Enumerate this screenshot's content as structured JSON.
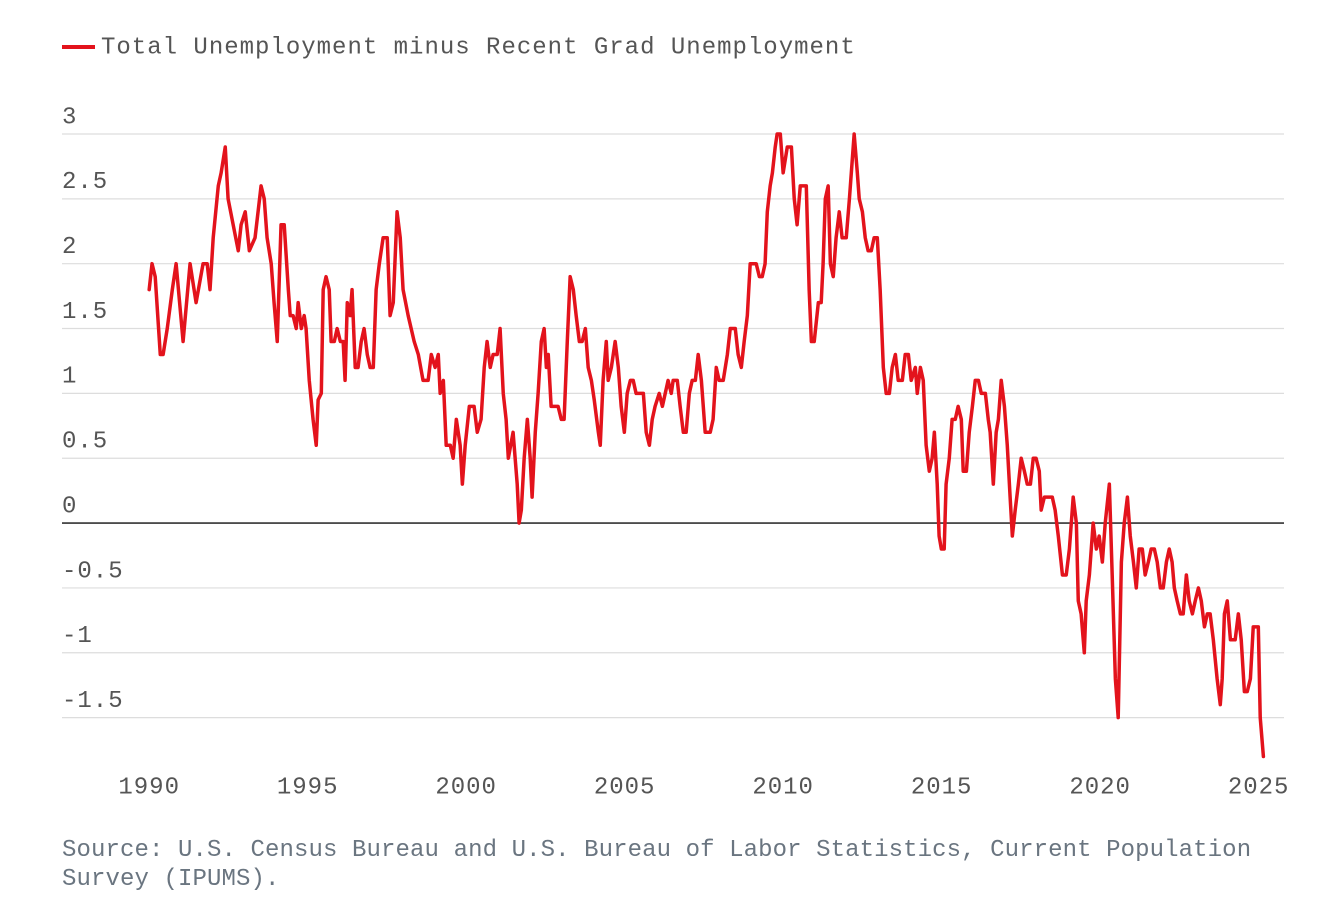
{
  "chart_data": {
    "type": "line",
    "source": "Source: U.S. Census Bureau and U.S. Bureau of Labor Statistics, Current Population Survey (IPUMS).",
    "x": [
      1990.0,
      1990.09,
      1990.19,
      1990.35,
      1990.44,
      1990.57,
      1990.73,
      1990.85,
      1991.07,
      1991.29,
      1991.48,
      1991.7,
      1991.83,
      1991.92,
      1992.02,
      1992.18,
      1992.27,
      1992.4,
      1992.49,
      1992.65,
      1992.81,
      1992.9,
      1993.03,
      1993.16,
      1993.34,
      1993.53,
      1993.63,
      1993.72,
      1993.85,
      1993.94,
      1994.04,
      1994.16,
      1994.26,
      1994.39,
      1994.45,
      1994.54,
      1994.64,
      1994.7,
      1994.8,
      1994.89,
      1994.95,
      1995.05,
      1995.17,
      1995.27,
      1995.33,
      1995.43,
      1995.49,
      1995.58,
      1995.68,
      1995.74,
      1995.84,
      1995.93,
      1996.03,
      1996.12,
      1996.18,
      1996.25,
      1996.34,
      1996.4,
      1996.5,
      1996.59,
      1996.69,
      1996.78,
      1996.88,
      1996.97,
      1997.07,
      1997.16,
      1997.26,
      1997.38,
      1997.51,
      1997.6,
      1997.7,
      1997.82,
      1997.92,
      1998.01,
      1998.17,
      1998.36,
      1998.49,
      1998.64,
      1998.8,
      1998.9,
      1999.02,
      1999.12,
      1999.18,
      1999.28,
      1999.37,
      1999.5,
      1999.59,
      1999.69,
      1999.81,
      1999.88,
      1999.97,
      2000.1,
      2000.25,
      2000.35,
      2000.47,
      2000.57,
      2000.66,
      2000.76,
      2000.85,
      2000.98,
      2001.07,
      2001.17,
      2001.26,
      2001.33,
      2001.48,
      2001.61,
      2001.67,
      2001.74,
      2001.83,
      2001.93,
      2002.02,
      2002.08,
      2002.18,
      2002.27,
      2002.37,
      2002.46,
      2002.53,
      2002.59,
      2002.68,
      2002.9,
      2003.0,
      2003.09,
      2003.19,
      2003.28,
      2003.38,
      2003.47,
      2003.57,
      2003.66,
      2003.76,
      2003.85,
      2003.95,
      2004.04,
      2004.17,
      2004.23,
      2004.32,
      2004.42,
      2004.48,
      2004.58,
      2004.7,
      2004.8,
      2004.89,
      2004.99,
      2005.08,
      2005.18,
      2005.27,
      2005.36,
      2005.59,
      2005.68,
      2005.78,
      2005.87,
      2005.96,
      2006.09,
      2006.19,
      2006.28,
      2006.37,
      2006.47,
      2006.53,
      2006.66,
      2006.75,
      2006.85,
      2006.94,
      2007.04,
      2007.13,
      2007.23,
      2007.32,
      2007.42,
      2007.54,
      2007.7,
      2007.79,
      2007.89,
      2007.98,
      2008.11,
      2008.24,
      2008.33,
      2008.49,
      2008.58,
      2008.68,
      2008.77,
      2008.87,
      2008.96,
      2009.15,
      2009.25,
      2009.34,
      2009.43,
      2009.5,
      2009.59,
      2009.66,
      2009.75,
      2009.81,
      2009.91,
      2010.0,
      2010.13,
      2010.26,
      2010.35,
      2010.44,
      2010.54,
      2010.73,
      2010.82,
      2010.89,
      2010.98,
      2011.11,
      2011.2,
      2011.26,
      2011.33,
      2011.42,
      2011.49,
      2011.58,
      2011.67,
      2011.77,
      2011.86,
      2011.99,
      2012.09,
      2012.18,
      2012.24,
      2012.34,
      2012.4,
      2012.5,
      2012.59,
      2012.68,
      2012.78,
      2012.87,
      2012.97,
      2013.06,
      2013.16,
      2013.25,
      2013.35,
      2013.44,
      2013.54,
      2013.63,
      2013.76,
      2013.85,
      2013.95,
      2014.04,
      2014.17,
      2014.23,
      2014.33,
      2014.42,
      2014.51,
      2014.61,
      2014.7,
      2014.77,
      2014.86,
      2014.92,
      2014.99,
      2015.08,
      2015.14,
      2015.24,
      2015.33,
      2015.43,
      2015.52,
      2015.62,
      2015.68,
      2015.78,
      2015.87,
      2015.97,
      2016.06,
      2016.16,
      2016.25,
      2016.38,
      2016.47,
      2016.53,
      2016.63,
      2016.72,
      2016.79,
      2016.88,
      2016.98,
      2017.07,
      2017.16,
      2017.23,
      2017.32,
      2017.42,
      2017.51,
      2017.61,
      2017.7,
      2017.8,
      2017.89,
      2017.98,
      2018.08,
      2018.14,
      2018.24,
      2018.49,
      2018.58,
      2018.68,
      2018.81,
      2018.93,
      2019.03,
      2019.15,
      2019.25,
      2019.31,
      2019.4,
      2019.5,
      2019.56,
      2019.66,
      2019.78,
      2019.88,
      2019.97,
      2020.07,
      2020.16,
      2020.29,
      2020.38,
      2020.48,
      2020.57,
      2020.67,
      2020.76,
      2020.86,
      2020.95,
      2021.05,
      2021.14,
      2021.23,
      2021.33,
      2021.42,
      2021.52,
      2021.61,
      2021.71,
      2021.8,
      2021.9,
      2021.99,
      2022.09,
      2022.18,
      2022.27,
      2022.34,
      2022.43,
      2022.53,
      2022.62,
      2022.72,
      2022.81,
      2022.91,
      2023.0,
      2023.1,
      2023.19,
      2023.29,
      2023.38,
      2023.47,
      2023.57,
      2023.69,
      2023.79,
      2023.85,
      2023.92,
      2024.01,
      2024.11,
      2024.26,
      2024.36,
      2024.45,
      2024.55,
      2024.64,
      2024.74,
      2024.83,
      2024.99,
      2025.05,
      2025.15
    ],
    "series": [
      {
        "name": "Total Unemployment minus Recent Grad Unemployment",
        "color": "#e3131c",
        "values": [
          1.8,
          2.0,
          1.9,
          1.3,
          1.3,
          1.5,
          1.8,
          2.0,
          1.4,
          2.0,
          1.7,
          2.0,
          2.0,
          1.8,
          2.2,
          2.6,
          2.7,
          2.9,
          2.5,
          2.3,
          2.1,
          2.3,
          2.4,
          2.1,
          2.2,
          2.6,
          2.5,
          2.2,
          2.0,
          1.7,
          1.4,
          2.3,
          2.3,
          1.8,
          1.6,
          1.6,
          1.5,
          1.7,
          1.5,
          1.6,
          1.5,
          1.1,
          0.8,
          0.6,
          0.95,
          1.0,
          1.8,
          1.9,
          1.8,
          1.4,
          1.4,
          1.5,
          1.4,
          1.4,
          1.1,
          1.7,
          1.6,
          1.8,
          1.2,
          1.2,
          1.4,
          1.5,
          1.3,
          1.2,
          1.2,
          1.8,
          2.0,
          2.2,
          2.2,
          1.6,
          1.7,
          2.4,
          2.2,
          1.8,
          1.6,
          1.4,
          1.3,
          1.1,
          1.1,
          1.3,
          1.2,
          1.3,
          1.0,
          1.1,
          0.6,
          0.6,
          0.5,
          0.8,
          0.6,
          0.3,
          0.6,
          0.9,
          0.9,
          0.7,
          0.8,
          1.2,
          1.4,
          1.2,
          1.3,
          1.3,
          1.5,
          1.0,
          0.8,
          0.5,
          0.7,
          0.3,
          0.0,
          0.1,
          0.5,
          0.8,
          0.5,
          0.2,
          0.7,
          1.0,
          1.4,
          1.5,
          1.2,
          1.3,
          0.9,
          0.9,
          0.8,
          0.8,
          1.4,
          1.9,
          1.8,
          1.6,
          1.4,
          1.4,
          1.5,
          1.2,
          1.1,
          0.95,
          0.7,
          0.6,
          1.1,
          1.4,
          1.1,
          1.2,
          1.4,
          1.2,
          0.9,
          0.7,
          1.0,
          1.1,
          1.1,
          1.0,
          1.0,
          0.7,
          0.6,
          0.8,
          0.9,
          1.0,
          0.9,
          1.0,
          1.1,
          1.0,
          1.1,
          1.1,
          0.9,
          0.7,
          0.7,
          1.0,
          1.1,
          1.1,
          1.3,
          1.1,
          0.7,
          0.7,
          0.8,
          1.2,
          1.1,
          1.1,
          1.3,
          1.5,
          1.5,
          1.3,
          1.2,
          1.4,
          1.6,
          2.0,
          2.0,
          1.9,
          1.9,
          2.0,
          2.4,
          2.6,
          2.7,
          2.9,
          3.0,
          3.0,
          2.7,
          2.9,
          2.9,
          2.5,
          2.3,
          2.6,
          2.6,
          1.8,
          1.4,
          1.4,
          1.7,
          1.7,
          2.0,
          2.5,
          2.6,
          2.0,
          1.9,
          2.2,
          2.4,
          2.2,
          2.2,
          2.5,
          2.8,
          3.0,
          2.7,
          2.5,
          2.4,
          2.2,
          2.1,
          2.1,
          2.2,
          2.2,
          1.8,
          1.2,
          1.0,
          1.0,
          1.2,
          1.3,
          1.1,
          1.1,
          1.3,
          1.3,
          1.1,
          1.2,
          1.0,
          1.2,
          1.1,
          0.6,
          0.4,
          0.5,
          0.7,
          0.3,
          -0.1,
          -0.2,
          -0.2,
          0.3,
          0.5,
          0.8,
          0.8,
          0.9,
          0.8,
          0.4,
          0.4,
          0.7,
          0.9,
          1.1,
          1.1,
          1.0,
          1.0,
          0.8,
          0.7,
          0.3,
          0.7,
          0.8,
          1.1,
          0.9,
          0.6,
          0.2,
          -0.1,
          0.1,
          0.3,
          0.5,
          0.4,
          0.3,
          0.3,
          0.5,
          0.5,
          0.4,
          0.1,
          0.2,
          0.2,
          0.1,
          -0.1,
          -0.4,
          -0.4,
          -0.2,
          0.2,
          0.0,
          -0.6,
          -0.7,
          -1.0,
          -0.6,
          -0.4,
          0.0,
          -0.2,
          -0.1,
          -0.3,
          0.0,
          0.3,
          -0.4,
          -1.2,
          -1.5,
          -0.3,
          0.0,
          0.2,
          -0.1,
          -0.3,
          -0.5,
          -0.2,
          -0.2,
          -0.4,
          -0.3,
          -0.2,
          -0.2,
          -0.3,
          -0.5,
          -0.5,
          -0.3,
          -0.2,
          -0.3,
          -0.5,
          -0.6,
          -0.7,
          -0.7,
          -0.4,
          -0.6,
          -0.7,
          -0.6,
          -0.5,
          -0.6,
          -0.8,
          -0.7,
          -0.7,
          -0.9,
          -1.2,
          -1.4,
          -1.2,
          -0.7,
          -0.6,
          -0.9,
          -0.9,
          -0.7,
          -0.9,
          -1.3,
          -1.3,
          -1.2,
          -0.8,
          -0.8,
          -1.5,
          -1.8
        ]
      }
    ],
    "xlim": [
      1987.25,
      2025.8
    ],
    "xticks": [
      1990,
      1995,
      2000,
      2005,
      2010,
      2015,
      2020,
      2025
    ],
    "ylim": [
      -1.85,
      3
    ],
    "yticks": [
      -1.5,
      -1,
      -0.5,
      0,
      0.5,
      1,
      1.5,
      2,
      2.5,
      3
    ],
    "grid": true
  }
}
